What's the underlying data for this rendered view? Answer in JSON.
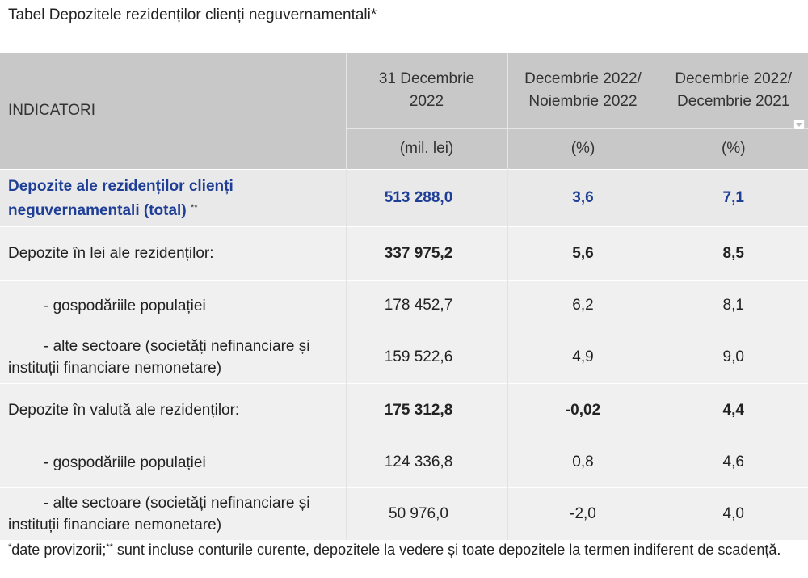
{
  "title": "Tabel  Depozitele rezidenților clienți neguvernamentali*",
  "table": {
    "headers": {
      "indicator": "INDICATORI",
      "col1_line1": "31 Decembrie",
      "col1_line2": "2022",
      "col2_line1": "Decembrie 2022/",
      "col2_line2": "Noiembrie 2022",
      "col3_line1": "Decembrie 2022/",
      "col3_line2": "Decembrie 2021",
      "unit1": "(mil. lei)",
      "unit2": "(%)",
      "unit3": "(%)"
    },
    "rows": [
      {
        "label_line1": "Depozite ale rezidenților clienți",
        "label_line2": "neguvernamentali (total)",
        "label_sup": "**",
        "value": "513 288,0",
        "mom": "3,6",
        "yoy": "7,1"
      },
      {
        "label": "Depozite în lei ale rezidenților:",
        "value": "337 975,2",
        "mom": "5,6",
        "yoy": "8,5"
      },
      {
        "label": "- gospodăriile populației",
        "value": "178 452,7",
        "mom": "6,2",
        "yoy": "8,1"
      },
      {
        "label_line1": "- alte sectoare (societăți nefinanciare și",
        "label_line2": "instituții financiare nemonetare)",
        "value": "159 522,6",
        "mom": "4,9",
        "yoy": "9,0"
      },
      {
        "label": "Depozite în valută ale rezidenților:",
        "value": "175 312,8",
        "mom": "-0,02",
        "yoy": "4,4"
      },
      {
        "label": "- gospodăriile populației",
        "value": "124 336,8",
        "mom": "0,8",
        "yoy": "4,6"
      },
      {
        "label_line1": "- alte sectoare (societăți nefinanciare și",
        "label_line2": "instituții financiare nemonetare)",
        "value": "50 976,0",
        "mom": "-2,0",
        "yoy": "4,0"
      }
    ]
  },
  "footnote": {
    "sup1": "*",
    "text1": "date provizorii;",
    "sup2": "**",
    "text2": " sunt incluse conturile curente, depozitele la vedere și toate depozitele la termen indiferent de scadență."
  },
  "icons": {
    "filter_dropdown": "dropdown-arrow-icon"
  },
  "colors": {
    "header_bg": "#c8c8c8",
    "row_bg": "#f0f0f0",
    "total_text": "#1f3f96"
  }
}
